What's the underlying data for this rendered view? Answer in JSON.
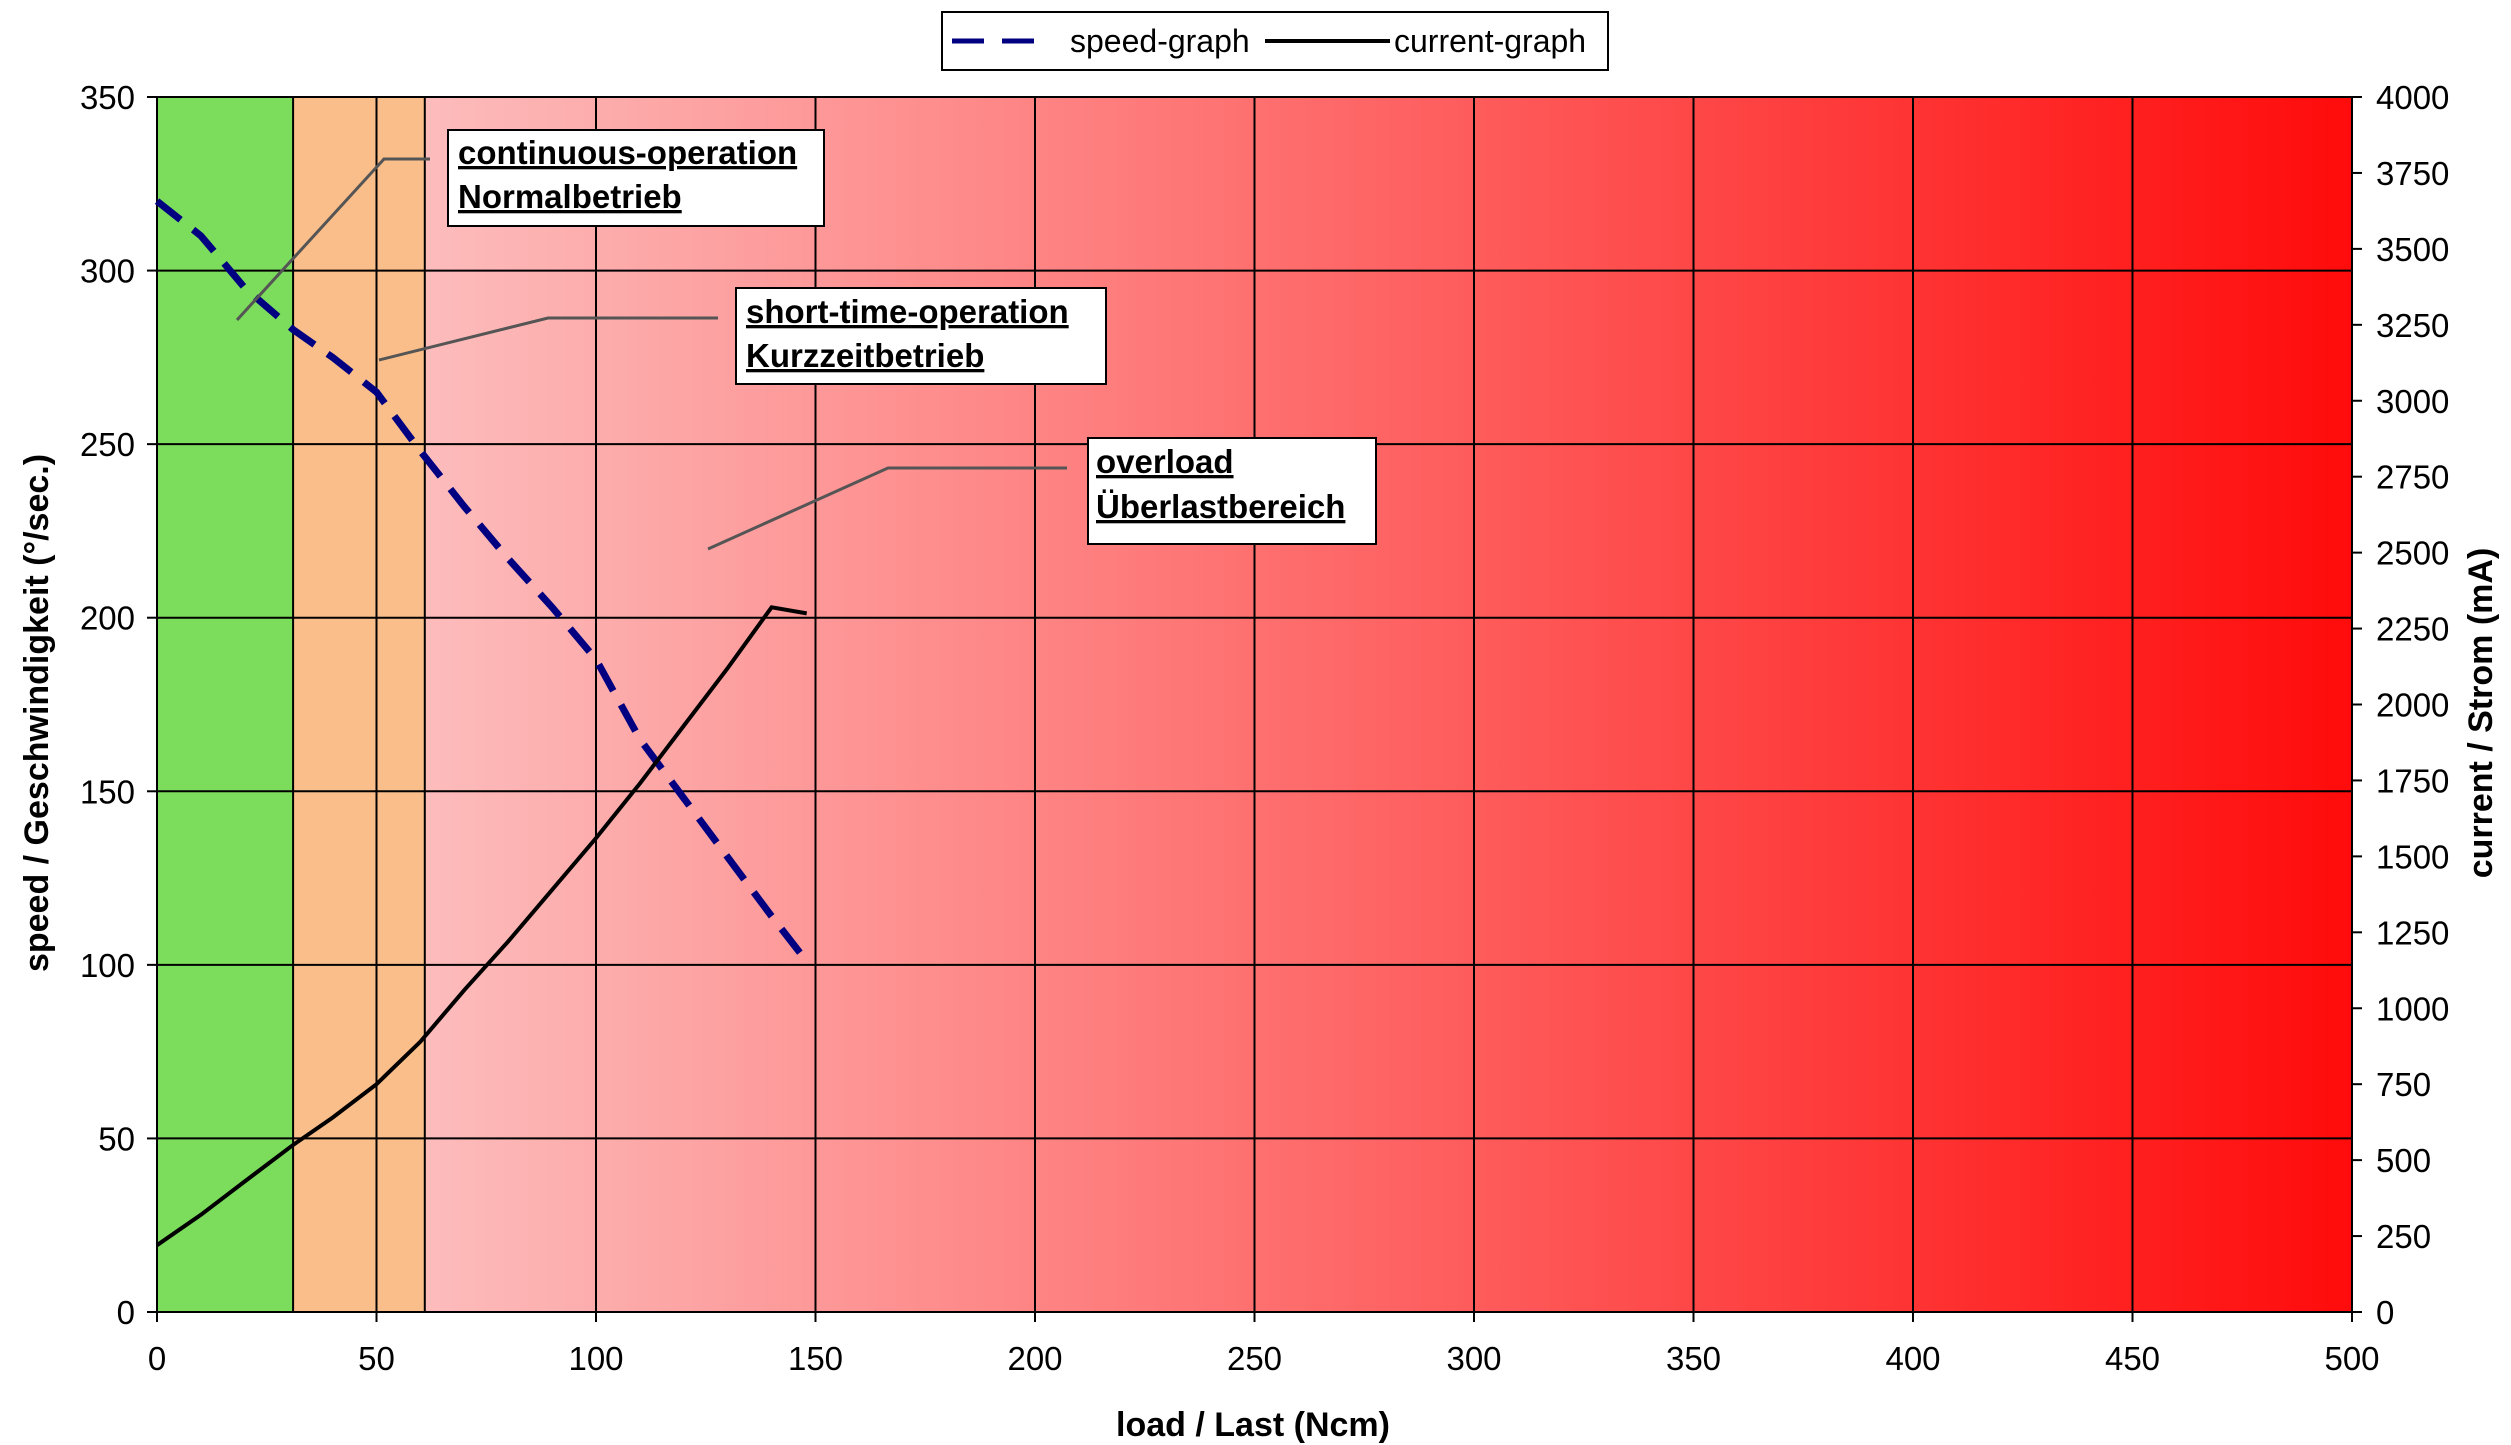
{
  "colors": {
    "continuous_zone": "#7cdc5c",
    "short_time_zone": "#f9be8a",
    "overload_start": "#fdbcbc",
    "overload_end": "#ff0b0b",
    "speed_line": "#000080",
    "current_line": "#000000",
    "grid": "#000000"
  },
  "legend": {
    "speed": "speed-graph",
    "current": "current-graph"
  },
  "annotations": {
    "continuous": {
      "line1": "continuous-operation",
      "line2": "Normalbetrieb"
    },
    "short_time": {
      "line1": "short-time-operation",
      "line2": "Kurzzeitbetrieb"
    },
    "overload": {
      "line1": "overload",
      "line2": "Überlastbereich"
    }
  },
  "chart_data": {
    "type": "line",
    "xlabel": "load / Last (Ncm)",
    "ylabel": "speed / Geschwindigkeit (°/sec.)",
    "y2label": "current / Strom (mA)",
    "xlim": [
      0,
      500
    ],
    "ylim": [
      0,
      350
    ],
    "y2lim": [
      0,
      4000
    ],
    "xticks": [
      0,
      50,
      100,
      150,
      200,
      250,
      300,
      350,
      400,
      450,
      500
    ],
    "yticks": [
      0,
      50,
      100,
      150,
      200,
      250,
      300,
      350
    ],
    "y2ticks": [
      0,
      250,
      500,
      750,
      1000,
      1250,
      1500,
      1750,
      2000,
      2250,
      2500,
      2750,
      3000,
      3250,
      3500,
      3750,
      4000
    ],
    "grid": true,
    "legend_position": "top-center",
    "zones": [
      {
        "name": "continuous-operation",
        "x": [
          0,
          31
        ]
      },
      {
        "name": "short-time-operation",
        "x": [
          31,
          61
        ]
      },
      {
        "name": "overload",
        "x": [
          61,
          500
        ]
      }
    ],
    "series": [
      {
        "name": "speed-graph",
        "axis": "left",
        "style": "dashed",
        "x": [
          0,
          10,
          20,
          31,
          40,
          50,
          60,
          70,
          80,
          90,
          100,
          110,
          120,
          130,
          140,
          148
        ],
        "y": [
          320,
          310,
          295,
          283,
          275,
          265,
          248,
          232,
          217,
          203,
          188,
          165,
          148,
          131,
          114,
          101
        ]
      },
      {
        "name": "current-graph",
        "axis": "right",
        "style": "solid",
        "x": [
          0,
          10,
          20,
          31,
          40,
          50,
          60,
          70,
          80,
          90,
          100,
          110,
          120,
          130,
          140,
          148
        ],
        "y": [
          220,
          320,
          430,
          550,
          640,
          750,
          890,
          1060,
          1220,
          1390,
          1560,
          1740,
          1930,
          2120,
          2320,
          2300
        ]
      }
    ]
  }
}
